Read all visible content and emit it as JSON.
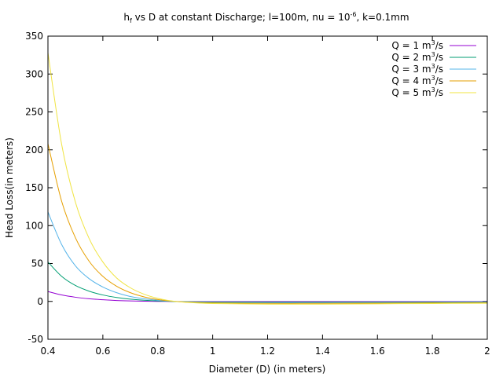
{
  "chart_data": {
    "type": "line",
    "title": {
      "h": "h",
      "h_sub": "f",
      "middle": " vs D at constant Discharge; l=100m, nu = 10",
      "exp": "-6",
      "end": ", k=0.1mm"
    },
    "xlabel": "Diameter (D) (in meters)",
    "ylabel": "Head Loss(in meters)",
    "xlim": [
      0.4,
      2.0
    ],
    "ylim": [
      -50,
      350
    ],
    "xticks": [
      "0.4",
      "0.6",
      "0.8",
      "1",
      "1.2",
      "1.4",
      "1.6",
      "1.8",
      "2"
    ],
    "xtick_values": [
      0.4,
      0.6,
      0.8,
      1.0,
      1.2,
      1.4,
      1.6,
      1.8,
      2.0
    ],
    "yticks": [
      "-50",
      "0",
      "50",
      "100",
      "150",
      "200",
      "250",
      "300",
      "350"
    ],
    "ytick_values": [
      -50,
      0,
      50,
      100,
      150,
      200,
      250,
      300,
      350
    ],
    "grid": false,
    "legend_position": "top-right",
    "legend_unit_base": "m",
    "legend_unit_exp": "3",
    "legend_unit_tail": "/s",
    "series": [
      {
        "name": "Q = 1 ",
        "color": "#9400d3",
        "x": [
          0.4,
          0.45,
          0.5,
          0.55,
          0.6,
          0.65,
          0.7,
          0.75,
          0.8,
          0.85,
          0.9,
          1.0,
          1.2,
          1.4,
          1.6,
          1.8,
          2.0
        ],
        "y": [
          13,
          8.5,
          5.5,
          3.5,
          2.2,
          1.2,
          0.6,
          0.2,
          0,
          -0.1,
          -0.2,
          -0.3,
          -0.3,
          -0.3,
          -0.3,
          -0.3,
          -0.2
        ]
      },
      {
        "name": "Q = 2 ",
        "color": "#009e73",
        "x": [
          0.4,
          0.45,
          0.5,
          0.55,
          0.6,
          0.65,
          0.7,
          0.75,
          0.8,
          0.85,
          0.9,
          1.0,
          1.2,
          1.4,
          1.6,
          1.8,
          2.0
        ],
        "y": [
          52,
          33,
          21,
          13.5,
          8.5,
          5.2,
          3,
          1.6,
          0.6,
          0,
          -0.4,
          -0.8,
          -1,
          -1,
          -0.9,
          -0.8,
          -0.7
        ]
      },
      {
        "name": "Q = 3 ",
        "color": "#56b4e9",
        "x": [
          0.4,
          0.45,
          0.5,
          0.55,
          0.6,
          0.65,
          0.7,
          0.75,
          0.8,
          0.85,
          0.9,
          1.0,
          1.2,
          1.4,
          1.6,
          1.8,
          2.0
        ],
        "y": [
          118,
          75,
          47,
          30,
          19,
          11.5,
          6.5,
          3.5,
          1.5,
          0.2,
          -0.6,
          -1.4,
          -1.8,
          -1.8,
          -1.6,
          -1.4,
          -1.2
        ]
      },
      {
        "name": "Q = 4 ",
        "color": "#e69f00",
        "x": [
          0.4,
          0.45,
          0.5,
          0.55,
          0.6,
          0.65,
          0.7,
          0.75,
          0.8,
          0.85,
          0.9,
          1.0,
          1.2,
          1.4,
          1.6,
          1.8,
          2.0
        ],
        "y": [
          208,
          132,
          84,
          53,
          33,
          20,
          11.5,
          6,
          2.5,
          0.4,
          -0.8,
          -2,
          -2.6,
          -2.6,
          -2.3,
          -2,
          -1.7
        ]
      },
      {
        "name": "Q = 5 ",
        "color": "#f0e442",
        "x": [
          0.4,
          0.45,
          0.5,
          0.55,
          0.6,
          0.65,
          0.7,
          0.75,
          0.8,
          0.85,
          0.9,
          1.0,
          1.2,
          1.4,
          1.6,
          1.8,
          2.0
        ],
        "y": [
          328,
          207,
          131,
          83,
          52,
          31,
          18,
          9.5,
          4,
          0.6,
          -1.2,
          -2.8,
          -3.6,
          -3.6,
          -3.2,
          -2.8,
          -2.4
        ]
      }
    ]
  }
}
